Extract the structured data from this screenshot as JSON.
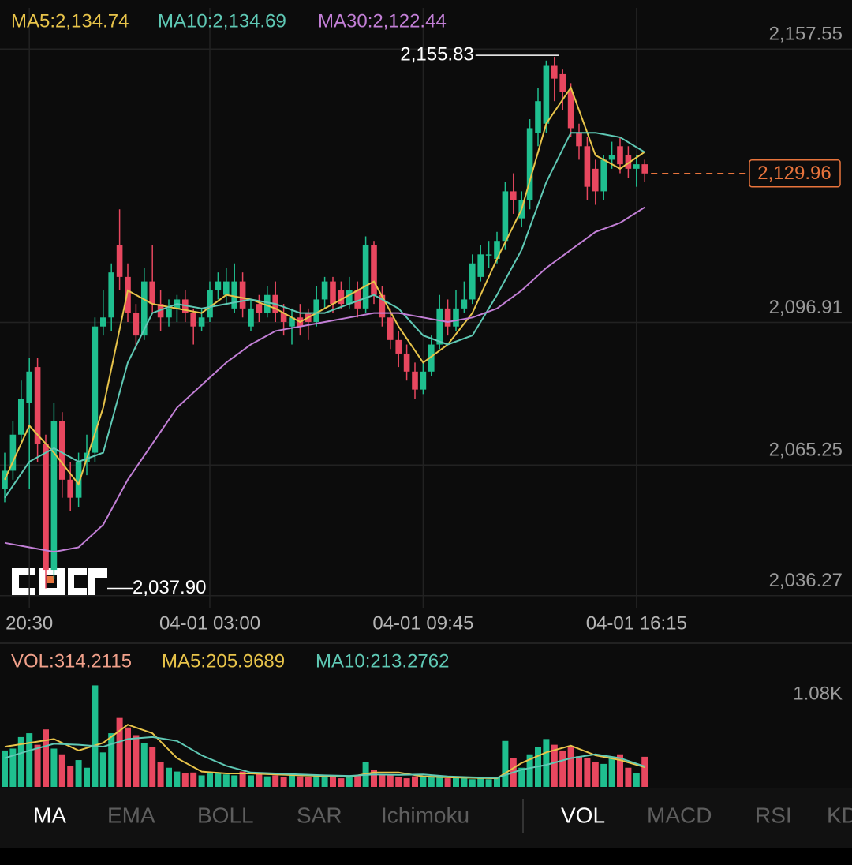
{
  "chart_data": [
    {
      "type": "candlestick",
      "categories": [
        null,
        null,
        null,
        "20:30",
        null,
        null,
        null,
        null,
        null,
        null,
        null,
        null,
        null,
        null,
        null,
        null,
        null,
        null,
        null,
        null,
        null,
        null,
        null,
        null,
        null,
        "04-01 03:00",
        null,
        null,
        null,
        null,
        null,
        null,
        null,
        null,
        null,
        null,
        null,
        null,
        null,
        null,
        null,
        null,
        null,
        null,
        null,
        null,
        null,
        null,
        null,
        null,
        null,
        "04-01 09:45",
        null,
        null,
        null,
        null,
        null,
        null,
        null,
        null,
        null,
        null,
        null,
        null,
        null,
        null,
        null,
        null,
        null,
        null,
        null,
        null,
        null,
        null,
        null,
        null,
        null,
        "04-01 16:15",
        null
      ],
      "open": [
        2060,
        2064,
        2072,
        2079,
        2087,
        2070,
        2042,
        2075,
        2062,
        2058,
        2066,
        2068,
        2096,
        2098,
        2114,
        2107,
        2099,
        2094,
        2106,
        2101,
        2098,
        2100,
        2102,
        2099,
        2096,
        2098,
        2104,
        2103,
        2100,
        2106,
        2096,
        2101,
        2099,
        2103,
        2099,
        2096,
        2098,
        2099,
        2097,
        2102,
        2106,
        2104,
        2101,
        2104,
        2100,
        2114,
        2103,
        2098,
        2093,
        2090,
        2086,
        2082,
        2086,
        2092,
        2100,
        2096,
        2100,
        2102,
        2107,
        2112,
        2111,
        2115,
        2126,
        2120,
        2124,
        2139,
        2141,
        2154,
        2152,
        2148,
        2139,
        2136,
        2131,
        2126,
        2133,
        2136,
        2134,
        2131,
        2132
      ],
      "high": [
        2068,
        2075,
        2084,
        2089,
        2089,
        2072,
        2079,
        2077,
        2066,
        2068,
        2072,
        2098,
        2104,
        2110,
        2122,
        2110,
        2101,
        2109,
        2114,
        2104,
        2102,
        2103,
        2104,
        2100,
        2100,
        2106,
        2108,
        2109,
        2110,
        2108,
        2102,
        2103,
        2105,
        2106,
        2101,
        2100,
        2101,
        2100,
        2105,
        2107,
        2107,
        2106,
        2107,
        2106,
        2116,
        2115,
        2105,
        2100,
        2095,
        2092,
        2088,
        2088,
        2094,
        2103,
        2102,
        2104,
        2106,
        2112,
        2114,
        2115,
        2117,
        2128,
        2130,
        2126,
        2142,
        2149,
        2155,
        2155.83,
        2153,
        2150,
        2141,
        2138,
        2133,
        2134,
        2137,
        2138,
        2136,
        2134,
        2133
      ],
      "low": [
        2057,
        2062,
        2070,
        2060,
        2066,
        2037.9,
        2040,
        2058,
        2055,
        2056,
        2063,
        2066,
        2094,
        2095,
        2104,
        2097,
        2091,
        2093,
        2099,
        2095,
        2096,
        2097,
        2097,
        2092,
        2095,
        2097,
        2102,
        2101,
        2099,
        2098,
        2095,
        2097,
        2098,
        2097,
        2094,
        2092,
        2094,
        2093,
        2096,
        2100,
        2099,
        2100,
        2100,
        2098,
        2099,
        2101,
        2096,
        2091,
        2087,
        2084,
        2080,
        2081,
        2085,
        2091,
        2094,
        2095,
        2099,
        2101,
        2106,
        2109,
        2110,
        2113,
        2121,
        2118,
        2122,
        2136,
        2139,
        2146,
        2144,
        2138,
        2133,
        2124,
        2123,
        2124,
        2131,
        2130,
        2129,
        2127,
        2128
      ],
      "close": [
        2064,
        2072,
        2080,
        2086,
        2070,
        2042,
        2075,
        2062,
        2058,
        2066,
        2068,
        2096,
        2098,
        2108,
        2107,
        2099,
        2094,
        2106,
        2101,
        2098,
        2100,
        2102,
        2099,
        2096,
        2098,
        2104,
        2106,
        2106,
        2106,
        2100,
        2100,
        2099,
        2103,
        2099,
        2097,
        2098,
        2096,
        2097,
        2102,
        2106,
        2101,
        2101,
        2104,
        2100,
        2114,
        2103,
        2098,
        2093,
        2090,
        2086,
        2082,
        2086,
        2092,
        2100,
        2096,
        2100,
        2102,
        2110,
        2112,
        2112,
        2115,
        2126,
        2124,
        2124,
        2140,
        2146,
        2154,
        2151,
        2148,
        2140,
        2136,
        2127,
        2126,
        2133,
        2134,
        2132,
        2131,
        2132,
        2129.96
      ],
      "up_color": "#1fbf8f",
      "down_color": "#e8475f",
      "ylim": [
        2033.6,
        2166.7
      ],
      "yticks": [
        {
          "value": 2157.55,
          "label": "2,157.55"
        },
        {
          "value": 2096.91,
          "label": "2,096.91"
        },
        {
          "value": 2065.25,
          "label": "2,065.25"
        },
        {
          "value": 2036.27,
          "label": "2,036.27"
        }
      ],
      "grid": true,
      "max_label": "2,155.83",
      "min_label": "2,037.90",
      "last_label": "2,129.96",
      "last_color": "#e8743c",
      "lines": [
        {
          "name": "MA5:2,134.74",
          "color": "#e8c44a",
          "x": [
            0,
            3,
            6,
            9,
            12,
            15,
            18,
            21,
            24,
            27,
            30,
            33,
            36,
            39,
            42,
            45,
            48,
            51,
            54,
            57,
            60,
            63,
            66,
            69,
            72,
            75,
            78
          ],
          "values": [
            2062,
            2074,
            2068,
            2061,
            2078,
            2104,
            2101,
            2100,
            2099,
            2103,
            2102,
            2100,
            2097,
            2100,
            2103,
            2106,
            2096,
            2088,
            2092,
            2099,
            2111,
            2122,
            2141,
            2149,
            2134,
            2131,
            2134.74
          ]
        },
        {
          "name": "MA10:2,134.69",
          "color": "#5fc9b5",
          "x": [
            0,
            3,
            6,
            9,
            12,
            15,
            18,
            21,
            24,
            27,
            30,
            33,
            36,
            39,
            42,
            45,
            48,
            51,
            54,
            57,
            60,
            63,
            66,
            69,
            72,
            75,
            78
          ],
          "values": [
            2058,
            2066,
            2069,
            2066,
            2068,
            2088,
            2099,
            2101,
            2100,
            2101,
            2102,
            2101,
            2099,
            2099,
            2101,
            2103,
            2100,
            2094,
            2092,
            2094,
            2103,
            2113,
            2128,
            2139,
            2139,
            2138,
            2134.69
          ]
        },
        {
          "name": "MA30:2,122.44",
          "color": "#c27fd6",
          "x": [
            0,
            3,
            6,
            9,
            12,
            15,
            18,
            21,
            24,
            27,
            30,
            33,
            36,
            39,
            42,
            45,
            48,
            51,
            54,
            57,
            60,
            63,
            66,
            69,
            72,
            75,
            78
          ],
          "values": [
            2048,
            2047,
            2046,
            2047,
            2052,
            2062,
            2070,
            2078,
            2083,
            2088,
            2092,
            2095,
            2096,
            2097,
            2098,
            2099,
            2099,
            2098,
            2097,
            2098,
            2100,
            2104,
            2109,
            2113,
            2117,
            2119,
            2122.44
          ]
        }
      ]
    },
    {
      "type": "bar",
      "name": "VOL:314.2115",
      "color": "#f0a08a",
      "values": [
        380,
        400,
        520,
        560,
        440,
        600,
        400,
        340,
        220,
        280,
        200,
        1060,
        360,
        560,
        720,
        620,
        540,
        460,
        420,
        260,
        200,
        160,
        140,
        150,
        120,
        140,
        150,
        130,
        120,
        160,
        120,
        140,
        110,
        120,
        100,
        130,
        110,
        100,
        120,
        110,
        100,
        90,
        110,
        120,
        260,
        180,
        130,
        120,
        100,
        90,
        110,
        100,
        110,
        100,
        90,
        100,
        90,
        80,
        90,
        80,
        100,
        480,
        300,
        200,
        340,
        420,
        500,
        440,
        380,
        420,
        320,
        300,
        260,
        240,
        300,
        340,
        200,
        140,
        314.2115
      ],
      "ylim": [
        0,
        1080
      ],
      "yticks": [
        {
          "value": 1080,
          "label": "1.08K"
        }
      ],
      "lines": [
        {
          "name": "MA5:205.9689",
          "color": "#e8c44a",
          "x": [
            0,
            3,
            6,
            9,
            12,
            15,
            18,
            21,
            24,
            27,
            30,
            33,
            36,
            39,
            42,
            45,
            48,
            51,
            54,
            57,
            60,
            63,
            66,
            69,
            72,
            75,
            78
          ],
          "values": [
            420,
            460,
            500,
            380,
            460,
            650,
            560,
            300,
            160,
            140,
            140,
            130,
            120,
            115,
            105,
            150,
            150,
            110,
            100,
            95,
            90,
            250,
            360,
            430,
            330,
            280,
            205.9689
          ]
        },
        {
          "name": "MA10:213.2762",
          "color": "#5fc9b5",
          "x": [
            0,
            3,
            6,
            9,
            12,
            15,
            18,
            21,
            24,
            27,
            30,
            33,
            36,
            39,
            42,
            45,
            48,
            51,
            54,
            57,
            60,
            63,
            66,
            69,
            72,
            75,
            78
          ],
          "values": [
            300,
            380,
            450,
            440,
            420,
            500,
            520,
            480,
            330,
            220,
            150,
            140,
            130,
            120,
            115,
            130,
            125,
            130,
            110,
            100,
            95,
            180,
            230,
            300,
            340,
            300,
            213.2762
          ]
        }
      ]
    }
  ],
  "tabs": {
    "main": [
      "MA",
      "EMA",
      "BOLL",
      "SAR",
      "Ichimoku"
    ],
    "sub": [
      "VOL",
      "MACD",
      "RSI",
      "KD"
    ]
  }
}
